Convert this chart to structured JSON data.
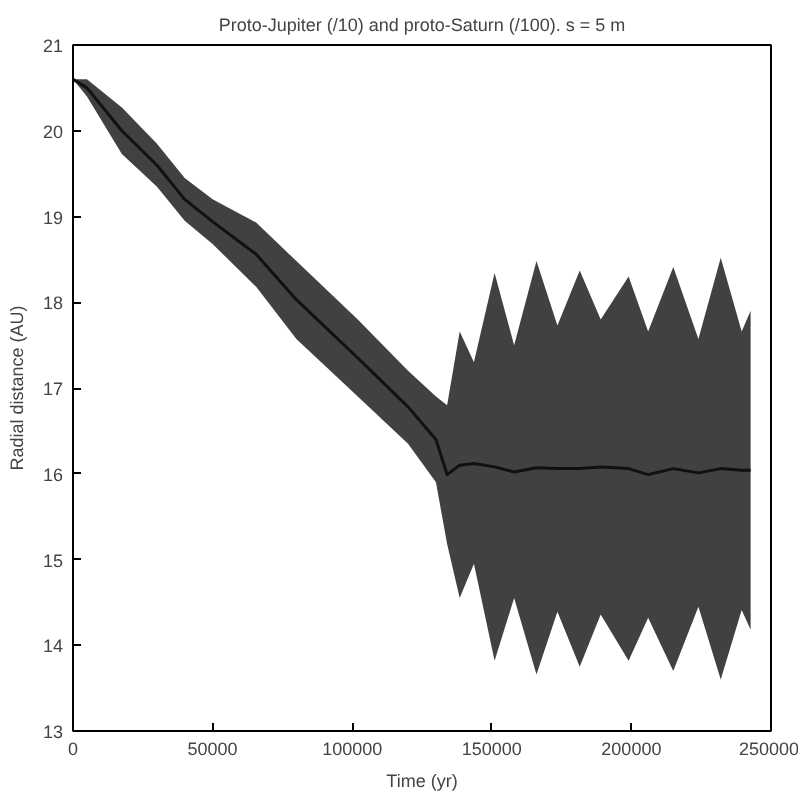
{
  "chart_data": {
    "type": "line",
    "title": "Proto-Jupiter (/10) and proto-Saturn (/100). s = 5 m",
    "xlabel": "Time (yr)",
    "ylabel": "Radial distance (AU)",
    "x": [
      0,
      5000,
      17500,
      30000,
      40000,
      50000,
      65600,
      80000,
      102000,
      120000,
      130000,
      134000,
      138500,
      143600,
      151000,
      158000,
      166000,
      173500,
      181500,
      189000,
      199000,
      206000,
      215000,
      224000,
      232000,
      239500,
      242700
    ],
    "series": [
      {
        "color": "#111111",
        "values": [
          20.6,
          20.5,
          20.0,
          19.6,
          19.2,
          18.94,
          18.56,
          18.03,
          17.35,
          16.78,
          16.4,
          15.99,
          16.1,
          16.12,
          16.08,
          16.02,
          16.07,
          16.06,
          16.06,
          16.08,
          16.06,
          15.99,
          16.06,
          16.01,
          16.06,
          16.04,
          16.04
        ],
        "upper": [
          20.6,
          20.6,
          20.27,
          19.85,
          19.45,
          19.2,
          18.93,
          18.48,
          17.8,
          17.2,
          16.9,
          16.8,
          17.66,
          17.3,
          18.34,
          17.5,
          18.48,
          17.73,
          18.37,
          17.8,
          18.3,
          17.66,
          18.41,
          17.57,
          18.52,
          17.66,
          17.9
        ],
        "lower": [
          20.6,
          20.4,
          19.73,
          19.35,
          18.95,
          18.68,
          18.18,
          17.57,
          16.9,
          16.35,
          15.9,
          15.18,
          14.55,
          14.95,
          13.82,
          14.55,
          13.66,
          14.39,
          13.75,
          14.36,
          13.82,
          14.32,
          13.7,
          14.45,
          13.6,
          14.41,
          14.18
        ]
      }
    ],
    "xlim": [
      0,
      250000
    ],
    "ylim": [
      13,
      21
    ],
    "xticks": [
      0,
      50000,
      100000,
      150000,
      200000,
      250000
    ],
    "yticks": [
      13,
      14,
      15,
      16,
      17,
      18,
      19,
      20,
      21
    ],
    "grid": false,
    "marker": "none",
    "line_style": "solid"
  }
}
